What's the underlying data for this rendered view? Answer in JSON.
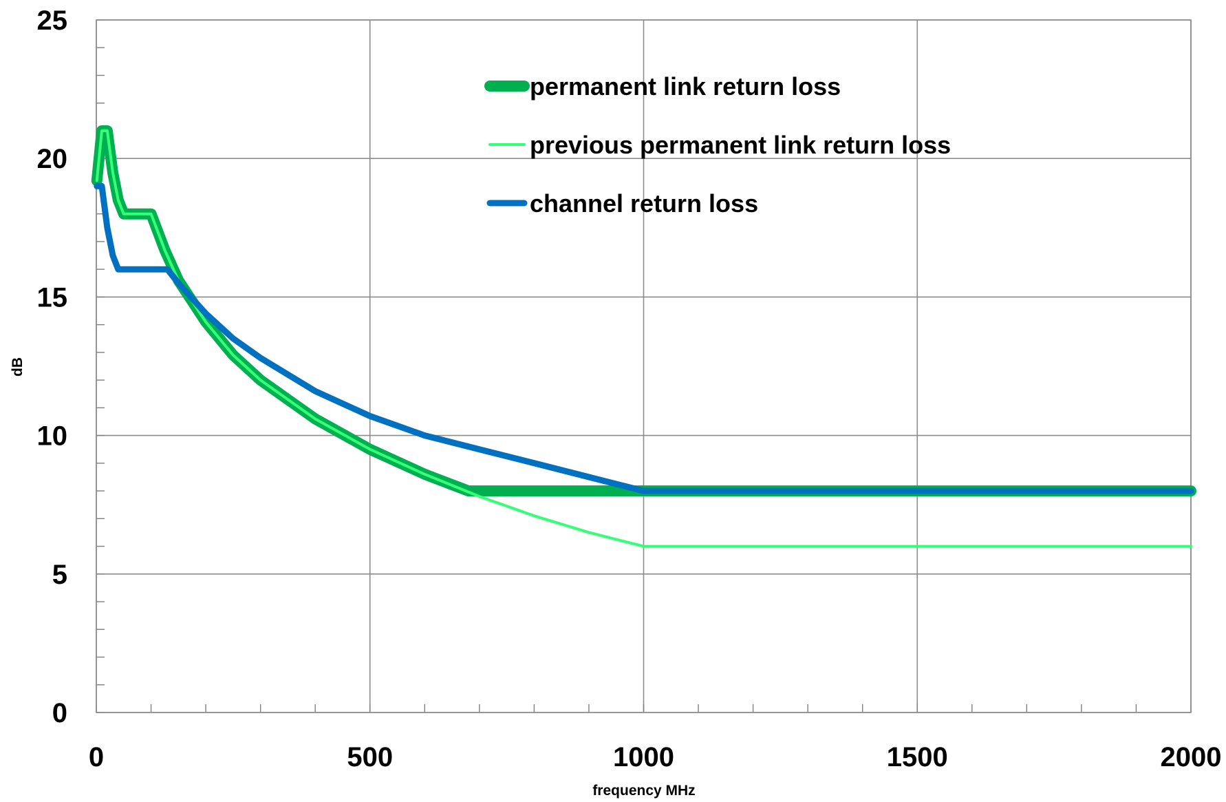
{
  "chart_data": {
    "type": "line",
    "title": "",
    "xlabel": "frequency MHz",
    "ylabel": "dB",
    "xlim": [
      0,
      2000
    ],
    "ylim": [
      0,
      25
    ],
    "x_ticks": [
      0,
      500,
      1000,
      1500,
      2000
    ],
    "y_ticks": [
      0,
      5,
      10,
      15,
      20,
      25
    ],
    "x_tick_labels": [
      "0",
      "500",
      "1000",
      "1500",
      "2000"
    ],
    "y_tick_labels": [
      "0",
      "5",
      "10",
      "15",
      "20",
      "25"
    ],
    "grid": true,
    "legend_position": "top-center",
    "series": [
      {
        "name": "permanent link return loss",
        "color": "#00b050",
        "x": [
          1,
          10,
          20,
          30,
          40,
          50,
          70,
          90,
          100,
          125,
          150,
          200,
          250,
          300,
          400,
          500,
          600,
          680,
          700,
          800,
          900,
          1000,
          1500,
          2000
        ],
        "y": [
          19.2,
          21.0,
          21.0,
          19.5,
          18.5,
          18.0,
          18.0,
          18.0,
          18.0,
          16.7,
          15.6,
          14.1,
          12.9,
          12.0,
          10.6,
          9.5,
          8.6,
          8.0,
          8.0,
          8.0,
          8.0,
          8.0,
          8.0,
          8.0
        ]
      },
      {
        "name": "previous permanent link return loss",
        "color": "#33ff77",
        "x": [
          1,
          10,
          20,
          30,
          40,
          50,
          70,
          90,
          100,
          125,
          150,
          200,
          250,
          300,
          400,
          500,
          600,
          700,
          800,
          900,
          1000,
          1500,
          2000
        ],
        "y": [
          19.2,
          21.0,
          21.0,
          19.5,
          18.5,
          18.0,
          18.0,
          18.0,
          18.0,
          16.7,
          15.6,
          14.1,
          12.9,
          12.0,
          10.6,
          9.5,
          8.6,
          7.8,
          7.1,
          6.5,
          6.0,
          6.0,
          6.0
        ]
      },
      {
        "name": "channel return loss",
        "color": "#0070c0",
        "x": [
          1,
          10,
          20,
          30,
          40,
          60,
          100,
          130,
          150,
          200,
          250,
          300,
          400,
          500,
          600,
          700,
          800,
          900,
          1000,
          1500,
          2000
        ],
        "y": [
          19.0,
          19.0,
          17.5,
          16.5,
          16.0,
          16.0,
          16.0,
          16.0,
          15.5,
          14.4,
          13.5,
          12.8,
          11.6,
          10.7,
          10.0,
          9.5,
          9.0,
          8.5,
          8.0,
          8.0,
          8.0
        ]
      }
    ]
  }
}
